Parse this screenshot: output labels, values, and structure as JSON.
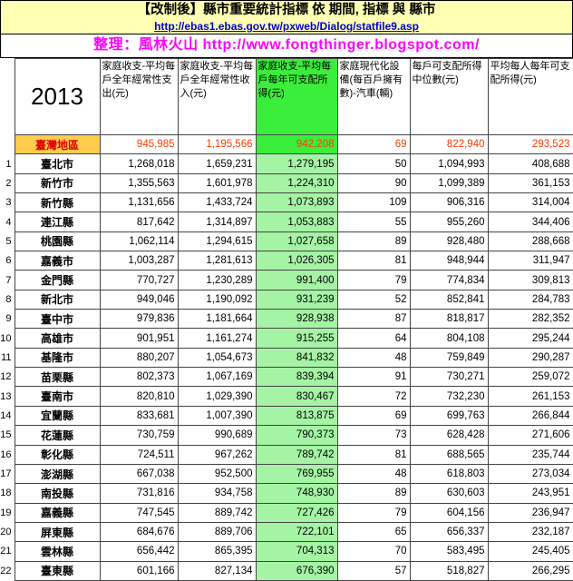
{
  "header": {
    "source_link": "http://ebas1.ebas.gov.tw/pxweb/Dialog/statfile9.asp",
    "credit": "整理：風林火山  http://www.fongthinger.blogspot.com/"
  },
  "chart_data": {
    "type": "table",
    "title": "【改制後】縣市重要統計指標 依 期間, 指標 與 縣市",
    "year": "2013",
    "columns": [
      "家庭收支-平均每戶全年經常性支出(元)",
      "家庭收支-平均每戶全年經常性收入(元)",
      "家庭收支-平均每戶每年可支配所得(元)",
      "家庭現代化設備(每百戶擁有數)-汽車(輛)",
      "每戶可支配所得中位數(元)",
      "平均每人每年可支配所得(元)"
    ],
    "summary_row": {
      "name": "臺灣地區",
      "values": [
        "945,985",
        "1,195,566",
        "942,208",
        "69",
        "822,940",
        "293,523"
      ]
    },
    "rows": [
      {
        "rank": "1",
        "name": "臺北市",
        "values": [
          "1,268,018",
          "1,659,231",
          "1,279,195",
          "50",
          "1,094,993",
          "408,688"
        ]
      },
      {
        "rank": "2",
        "name": "新竹市",
        "values": [
          "1,355,563",
          "1,601,978",
          "1,224,310",
          "90",
          "1,099,389",
          "361,153"
        ]
      },
      {
        "rank": "3",
        "name": "新竹縣",
        "values": [
          "1,131,656",
          "1,433,724",
          "1,073,893",
          "109",
          "906,316",
          "314,004"
        ]
      },
      {
        "rank": "4",
        "name": "連江縣",
        "values": [
          "817,642",
          "1,314,897",
          "1,053,883",
          "55",
          "955,260",
          "344,406"
        ]
      },
      {
        "rank": "5",
        "name": "桃園縣",
        "values": [
          "1,062,114",
          "1,294,615",
          "1,027,658",
          "89",
          "928,480",
          "288,668"
        ]
      },
      {
        "rank": "6",
        "name": "嘉義市",
        "values": [
          "1,003,287",
          "1,281,613",
          "1,026,305",
          "81",
          "948,944",
          "311,947"
        ]
      },
      {
        "rank": "7",
        "name": "金門縣",
        "values": [
          "770,727",
          "1,230,289",
          "991,400",
          "79",
          "774,834",
          "309,813"
        ]
      },
      {
        "rank": "8",
        "name": "新北市",
        "values": [
          "949,046",
          "1,190,092",
          "931,239",
          "52",
          "852,841",
          "284,783"
        ]
      },
      {
        "rank": "9",
        "name": "臺中市",
        "values": [
          "979,836",
          "1,181,664",
          "928,938",
          "87",
          "818,817",
          "282,352"
        ]
      },
      {
        "rank": "10",
        "name": "高雄市",
        "values": [
          "901,951",
          "1,161,274",
          "915,255",
          "64",
          "804,108",
          "295,244"
        ]
      },
      {
        "rank": "11",
        "name": "基隆市",
        "values": [
          "880,207",
          "1,054,673",
          "841,832",
          "48",
          "759,849",
          "290,287"
        ]
      },
      {
        "rank": "12",
        "name": "苗栗縣",
        "values": [
          "802,373",
          "1,067,169",
          "839,394",
          "91",
          "730,271",
          "259,072"
        ]
      },
      {
        "rank": "13",
        "name": "臺南市",
        "values": [
          "820,810",
          "1,029,390",
          "830,467",
          "72",
          "732,230",
          "261,153"
        ]
      },
      {
        "rank": "14",
        "name": "宜蘭縣",
        "values": [
          "833,681",
          "1,007,390",
          "813,875",
          "69",
          "699,763",
          "266,844"
        ]
      },
      {
        "rank": "15",
        "name": "花蓮縣",
        "values": [
          "730,759",
          "990,689",
          "790,373",
          "73",
          "628,428",
          "271,606"
        ]
      },
      {
        "rank": "16",
        "name": "彰化縣",
        "values": [
          "724,511",
          "967,262",
          "789,742",
          "81",
          "688,565",
          "235,744"
        ]
      },
      {
        "rank": "17",
        "name": "澎湖縣",
        "values": [
          "667,038",
          "952,500",
          "769,955",
          "48",
          "618,803",
          "273,034"
        ]
      },
      {
        "rank": "18",
        "name": "南投縣",
        "values": [
          "731,816",
          "934,758",
          "748,930",
          "89",
          "630,603",
          "243,951"
        ]
      },
      {
        "rank": "19",
        "name": "嘉義縣",
        "values": [
          "747,545",
          "889,742",
          "727,426",
          "79",
          "604,156",
          "236,947"
        ]
      },
      {
        "rank": "20",
        "name": "屏東縣",
        "values": [
          "684,676",
          "889,706",
          "722,101",
          "65",
          "656,337",
          "232,187"
        ]
      },
      {
        "rank": "21",
        "name": "雲林縣",
        "values": [
          "656,442",
          "865,395",
          "704,313",
          "70",
          "583,495",
          "245,405"
        ]
      },
      {
        "rank": "22",
        "name": "臺東縣",
        "values": [
          "601,166",
          "827,134",
          "676,390",
          "57",
          "518,827",
          "266,295"
        ]
      }
    ]
  },
  "colors": {
    "band_yellow": "#ffffb3",
    "link_blue": "#0000cc",
    "credit_magenta": "#ff00ff",
    "green_header": "#3bee3b",
    "green_column": "#a5f3a5",
    "summary_name_bg": "#ffcc4d",
    "summary_name_text": "#dd0000",
    "summary_text": "#ff3a00"
  }
}
